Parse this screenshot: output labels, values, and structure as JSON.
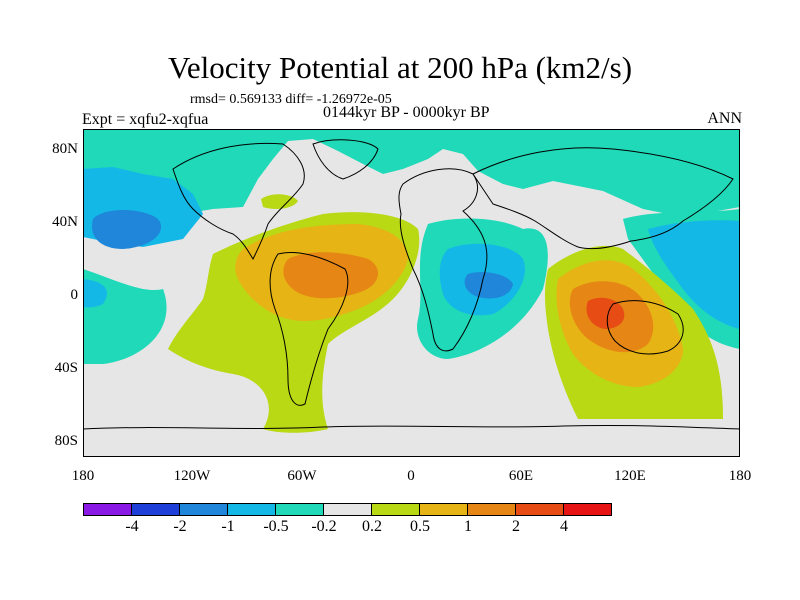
{
  "header": {
    "title": "Velocity Potential at 200 hPa (km2/s)",
    "stats": "rmsd= 0.569133 diff= -1.26972e-05",
    "experiment": "Expt = xqfu2-xqfua",
    "period": "0144kyr BP - 0000kyr BP",
    "season": "ANN"
  },
  "axes": {
    "lat_labels": [
      "80N",
      "40N",
      "0",
      "40S",
      "80S"
    ],
    "lon_labels": [
      "180",
      "120W",
      "60W",
      "0",
      "60E",
      "120E",
      "180"
    ]
  },
  "colorbar": {
    "labels": [
      "-4",
      "-2",
      "-1",
      "-0.5",
      "-0.2",
      "0.2",
      "0.5",
      "1",
      "2",
      "4"
    ],
    "colors": [
      "#8a19e6",
      "#1f3fd9",
      "#1f86d9",
      "#14b8e6",
      "#1fd9b8",
      "#e6e6e6",
      "#b8d914",
      "#e6b414",
      "#e68614",
      "#e64c14",
      "#e61414"
    ]
  },
  "map_colors": {
    "background": "#e6e6e6",
    "neg1": "#1fd9b8",
    "neg2": "#14b8e6",
    "neg3": "#1f86d9",
    "pos1": "#b8d914",
    "pos2": "#e6b414",
    "pos3": "#e68614",
    "pos4": "#e64c14"
  }
}
